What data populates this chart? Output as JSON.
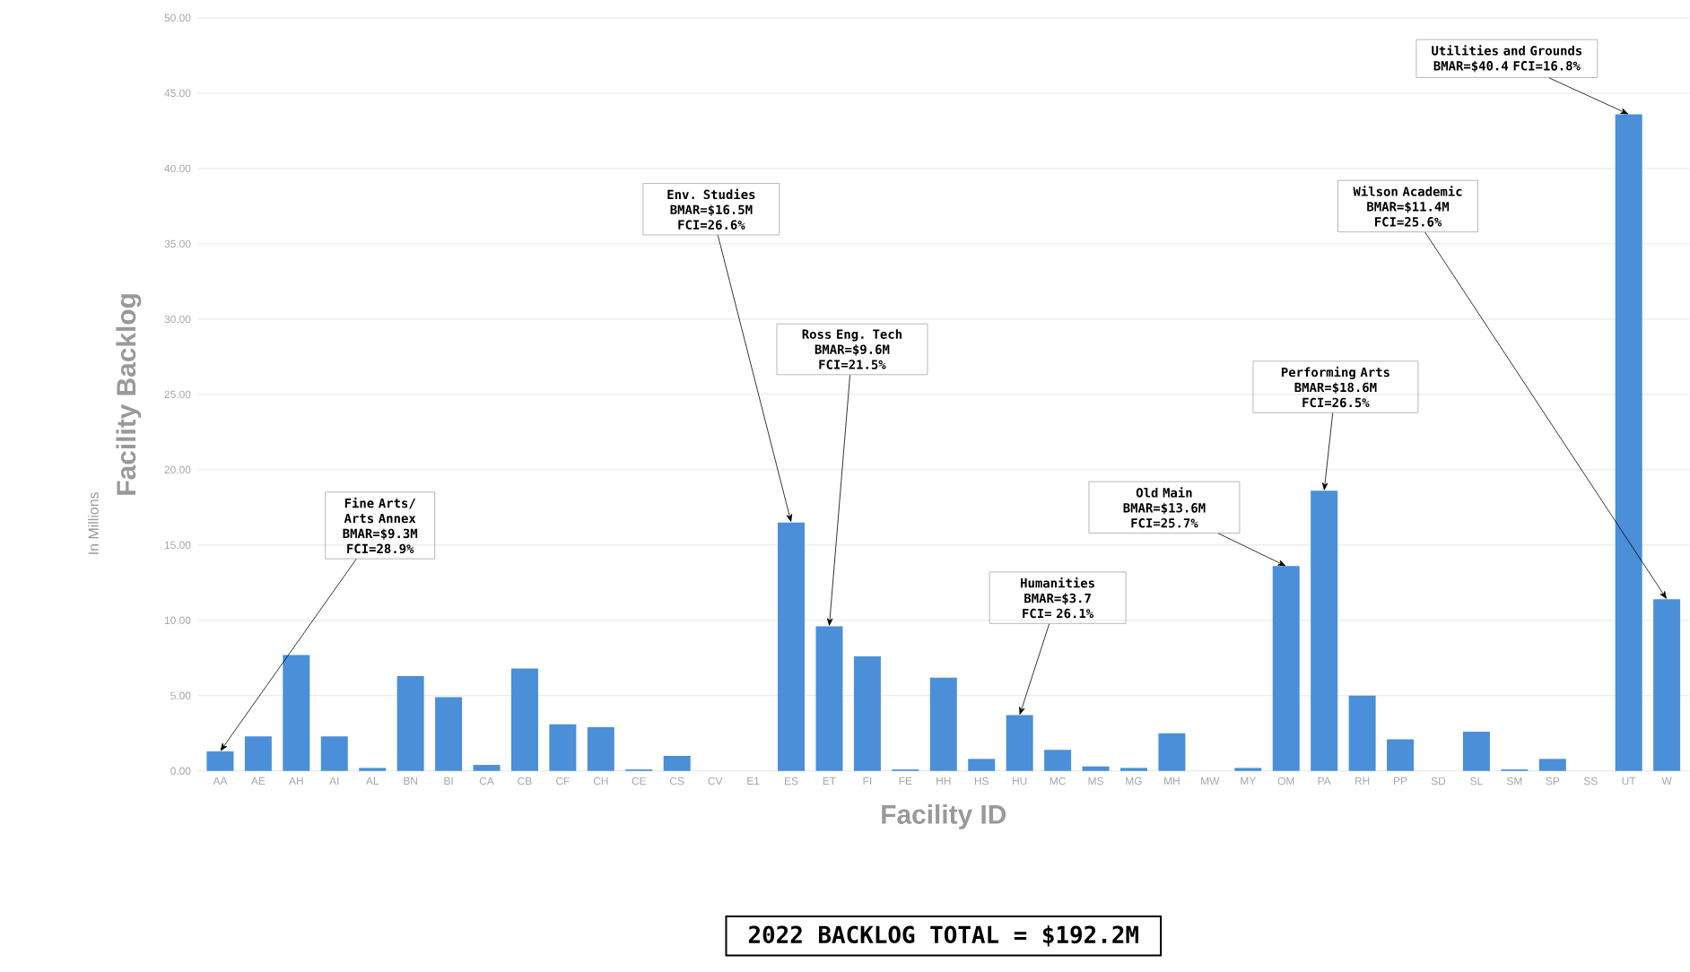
{
  "chart_data": {
    "type": "bar",
    "xlabel": "Facility ID",
    "ylabel": "Facility Backlog",
    "categories": [
      "AA",
      "AE",
      "AH",
      "AI",
      "AL",
      "BN",
      "BI",
      "CA",
      "CB",
      "CF",
      "CH",
      "CE",
      "CS",
      "CV",
      "E1",
      "ES",
      "ET",
      "FI",
      "FE",
      "HH",
      "HS",
      "HU",
      "MC",
      "MS",
      "MG",
      "MH",
      "MW",
      "MY",
      "OM",
      "PA",
      "RH",
      "PP",
      "SD",
      "SL",
      "SM",
      "SP",
      "SS",
      "UT",
      "W"
    ],
    "values": [
      1.3,
      2.3,
      7.7,
      2.3,
      0.2,
      6.3,
      4.9,
      0.4,
      6.8,
      3.1,
      2.9,
      0.1,
      1.0,
      0,
      0,
      16.5,
      9.6,
      7.6,
      0.1,
      6.2,
      0.8,
      3.7,
      1.4,
      0.3,
      0.2,
      2.5,
      0,
      0.2,
      13.6,
      18.6,
      5.0,
      2.1,
      0,
      2.6,
      0.1,
      0.8,
      0,
      43.6,
      11.4
    ],
    "color": "#4a8fd8",
    "ylim": [
      0,
      50
    ],
    "yticks": [
      {
        "value": 0,
        "label": "0.00"
      },
      {
        "value": 5,
        "label": "5.00"
      },
      {
        "value": 10,
        "label": "10.00"
      },
      {
        "value": 15,
        "label": "15.00"
      },
      {
        "value": 20,
        "label": "20.00"
      },
      {
        "value": 25,
        "label": "25.00"
      },
      {
        "value": 30,
        "label": "30.00"
      },
      {
        "value": 35,
        "label": "35.00"
      },
      {
        "value": 40,
        "label": "40.00"
      },
      {
        "value": 45,
        "label": "45.00"
      },
      {
        "value": 50,
        "label": "50.00"
      }
    ],
    "grid": "y",
    "annotations": [
      "In Millions",
      {
        "text": "Fine Arts/ Arts Annex BMAR=$9.3M FCI=28.9%",
        "x": "AA",
        "y": 1.3
      },
      {
        "text": "Env. Studies BMAR=$16.5M FCI=26.6%",
        "x": "ES",
        "y": 16.5
      },
      {
        "text": "Ross Eng. Tech BMAR=$9.6M FCI=21.5%",
        "x": "ET",
        "y": 9.6
      },
      {
        "text": "Humanities BMAR=$3.7 FCI= 26.1%",
        "x": "HU",
        "y": 3.7
      },
      {
        "text": "Old Main BMAR=$13.6M FCI=25.7%",
        "x": "OM",
        "y": 13.6
      },
      {
        "text": "Performing Arts BMAR=$18.6M FCI=26.5%",
        "x": "PA",
        "y": 18.6
      },
      {
        "text": "Wilson Academic BMAR=$11.4M FCI=25.6%",
        "x": "W",
        "y": 11.4
      },
      {
        "text": "Utilities and Grounds BMAR=$40.4 FCI=16.8%",
        "x": "UT",
        "y": 43.6
      },
      "2022 BACKLOG TOTAL = $192.2M"
    ]
  }
}
